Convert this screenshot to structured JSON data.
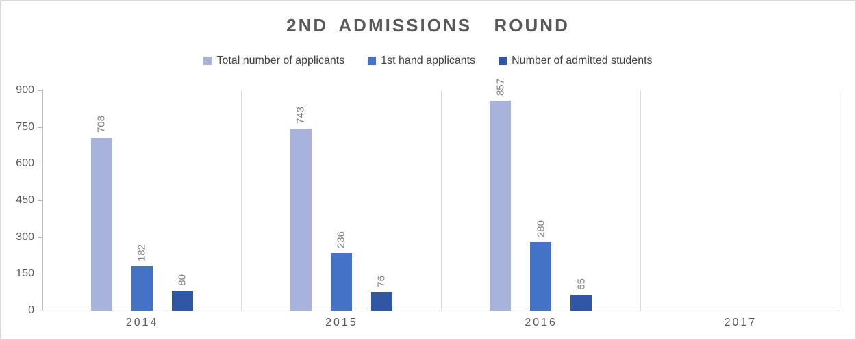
{
  "chart_data": {
    "type": "bar",
    "title": "2ND ADMISSIONS  ROUND",
    "categories": [
      "2014",
      "2015",
      "2016",
      "2017"
    ],
    "series": [
      {
        "name": "Total number of applicants",
        "color": "#A7B3DB",
        "values": [
          708,
          743,
          857,
          null
        ]
      },
      {
        "name": "1st hand applicants",
        "color": "#4472C7",
        "values": [
          182,
          236,
          280,
          null
        ]
      },
      {
        "name": "Number of admitted students",
        "color": "#3057A3",
        "values": [
          80,
          76,
          65,
          null
        ]
      }
    ],
    "xlabel": "",
    "ylabel": "",
    "ylim": [
      0,
      900
    ],
    "yticks": [
      0,
      150,
      300,
      450,
      600,
      750,
      900
    ],
    "grid": "vertical-column-separators-only",
    "legend_position": "top",
    "value_labels": "rotated-90-above-bars"
  },
  "colors": {
    "title_text": "#595959",
    "axis_label_text": "#595959",
    "value_label_text": "#7F7F7F",
    "legend_text": "#404040",
    "gridline": "#D9D9D9",
    "axis_line": "#BFBFBF",
    "frame_border": "#D9D9D9",
    "background": "#FFFFFF"
  }
}
